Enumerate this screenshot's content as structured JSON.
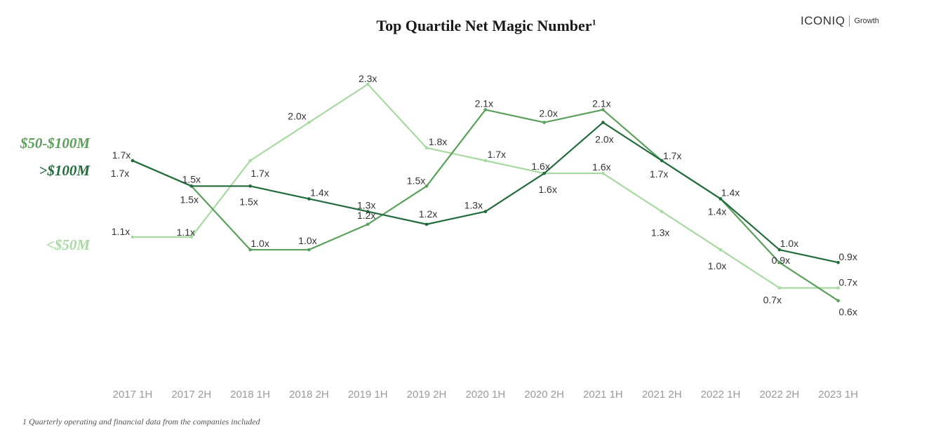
{
  "header": {
    "title": "Top Quartile Net Magic Number",
    "title_sup": "1",
    "brand_name": "ICONIQ",
    "brand_sub": "Growth"
  },
  "footnote": "1 Quarterly operating and financial data from the companies included",
  "chart_data": {
    "type": "line",
    "title": "Top Quartile Net Magic Number",
    "categories": [
      "2017 1H",
      "2017 2H",
      "2018 1H",
      "2018 2H",
      "2019 1H",
      "2019 2H",
      "2020 1H",
      "2020 2H",
      "2021 1H",
      "2021 2H",
      "2022 1H",
      "2022 2H",
      "2023 1H"
    ],
    "ylim": [
      0,
      2.5
    ],
    "grid": false,
    "legend": "left, inline series labels",
    "value_suffix": "x",
    "series": [
      {
        "name": "$50-$100M",
        "color": "#5aa05a",
        "values": [
          1.7,
          1.5,
          1.0,
          1.0,
          1.2,
          1.5,
          2.1,
          2.0,
          2.1,
          1.7,
          1.4,
          0.9,
          0.6
        ],
        "labels": [
          "1.7x",
          "1.5x",
          "1.0x",
          "1.0x",
          "1.2x",
          "1.5x",
          "2.1x",
          "2.0x",
          "2.1x",
          "1.7x",
          "1.4x",
          "0.9x",
          "0.6x"
        ]
      },
      {
        "name": ">$100M",
        "color": "#226b3c",
        "values": [
          1.7,
          1.5,
          1.5,
          1.4,
          1.3,
          1.2,
          1.3,
          1.6,
          2.0,
          1.7,
          1.4,
          1.0,
          0.9
        ],
        "labels": [
          "1.7x",
          "1.5x",
          "1.5x",
          "1.4x",
          "1.3x",
          "1.2x",
          "1.3x",
          "1.6x",
          "2.0x",
          "1.7x",
          "1.4x",
          "1.0x",
          "0.9x"
        ]
      },
      {
        "name": "<$50M",
        "color": "#a9d9a2",
        "values": [
          1.1,
          1.1,
          1.7,
          2.0,
          2.3,
          1.8,
          1.7,
          1.6,
          1.6,
          1.3,
          1.0,
          0.7,
          0.7
        ],
        "labels": [
          "1.1x",
          "1.1x",
          "1.7x",
          "2.0x",
          "2.3x",
          "1.8x",
          "1.7x",
          "1.6x",
          "1.6x",
          "1.3x",
          "1.0x",
          "0.7x",
          "0.7x"
        ]
      }
    ]
  }
}
